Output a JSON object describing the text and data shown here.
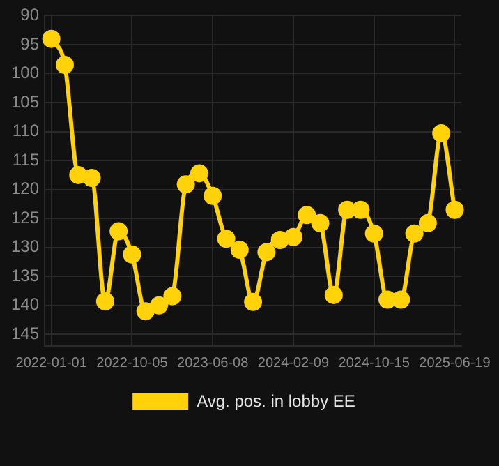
{
  "chart_data": {
    "type": "line",
    "categories": [
      "2022-01-01",
      null,
      null,
      null,
      null,
      null,
      "2022-10-05",
      null,
      null,
      null,
      null,
      null,
      "2023-06-08",
      null,
      null,
      null,
      null,
      null,
      "2024-02-09",
      null,
      null,
      null,
      null,
      null,
      "2024-10-15",
      null,
      null,
      null,
      null,
      null,
      "2025-06-19"
    ],
    "series": [
      {
        "name": "Avg. pos. in lobby EE",
        "color": "#ffd20a",
        "values": [
          94,
          98.5,
          117.5,
          118,
          139.3,
          127.2,
          131.2,
          141,
          140,
          138.4,
          119.1,
          117.2,
          121.1,
          128.5,
          130.4,
          139.4,
          130.8,
          128.7,
          128.2,
          124.4,
          125.8,
          138.2,
          123.5,
          123.5,
          127.6,
          139,
          139,
          127.6,
          125.8,
          110.3,
          123.5
        ]
      }
    ],
    "ylim": [
      147,
      90
    ],
    "yticks": [
      90,
      95,
      100,
      105,
      110,
      115,
      120,
      125,
      130,
      135,
      140,
      145
    ],
    "grid": true,
    "legend": "bottom",
    "marker": "circle"
  }
}
